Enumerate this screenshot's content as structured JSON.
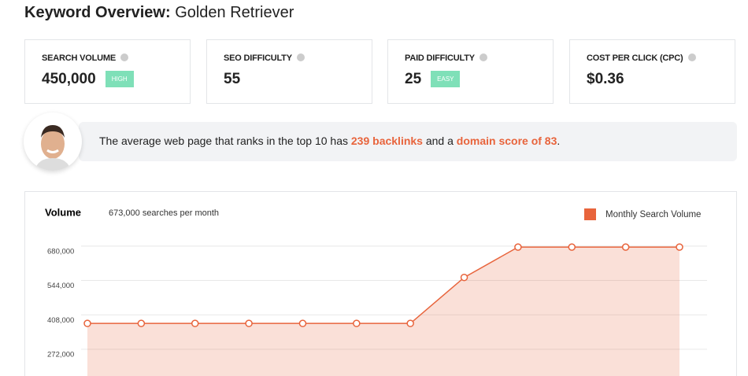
{
  "header": {
    "title_bold": "Keyword Overview:",
    "title": "Golden Retriever"
  },
  "cards": [
    {
      "label": "SEARCH VOLUME",
      "value": "450,000",
      "badge": "HIGH"
    },
    {
      "label": "SEO DIFFICULTY",
      "value": "55"
    },
    {
      "label": "PAID DIFFICULTY",
      "value": "25",
      "badge": "EASY"
    },
    {
      "label": "COST PER CLICK (CPC)",
      "value": "$0.36"
    }
  ],
  "message": {
    "parts": [
      "The average web page that ranks in the top 10 has ",
      "239 backlinks",
      " and a ",
      "domain score of 83",
      "."
    ]
  },
  "chart_data": {
    "type": "line",
    "title": "Volume",
    "subtitle": "673,000 searches per month",
    "categories": [
      null,
      null,
      null,
      null,
      null,
      null,
      null,
      null,
      null,
      null,
      null,
      null
    ],
    "series": [
      {
        "name": "Monthly Search Volume",
        "color": "#e8643c",
        "values": [
          374000,
          374000,
          374000,
          374000,
          374000,
          374000,
          374000,
          556000,
          676000,
          676000,
          676000,
          676000
        ]
      }
    ],
    "ylim": [
      166000,
      720000
    ],
    "yticks": [
      {
        "value": 272000,
        "label": "272,000"
      },
      {
        "value": 408000,
        "label": "408,000"
      },
      {
        "value": 544000,
        "label": "544,000"
      },
      {
        "value": 680000,
        "label": "680,000"
      }
    ],
    "grid": true,
    "legend": "top-right"
  }
}
